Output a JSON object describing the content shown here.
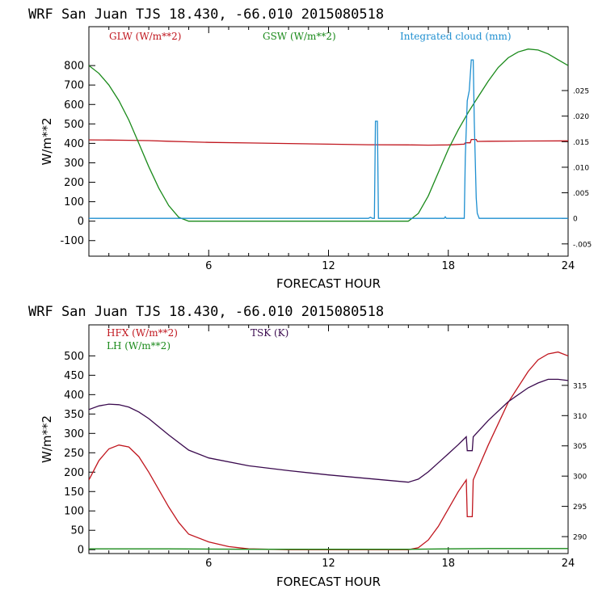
{
  "chart_data": [
    {
      "type": "line",
      "title": "WRF  San Juan TJS  18.430, -66.010  2015080518",
      "xlabel": "FORECAST HOUR",
      "ylabel": "W/m**2",
      "xlim": [
        0,
        24
      ],
      "ylim": [
        -180,
        1000
      ],
      "xticks": [
        "6",
        "12",
        "18",
        "24"
      ],
      "yticks": [
        "-100",
        "0",
        "100",
        "200",
        "300",
        "400",
        "500",
        "600",
        "700",
        "800"
      ],
      "y2lim": [
        -0.0074,
        0.0375
      ],
      "y2ticks": [
        "-.005",
        "0",
        ".005",
        ".010",
        ".015",
        ".020",
        ".025"
      ],
      "legend_placement": "top",
      "grid": false,
      "colors": {
        "GLW": "#c0161e",
        "GSW": "#1a8a1a",
        "CLOUD": "#1e8fd0"
      },
      "series": [
        {
          "name": "GLW (W/m**2)",
          "axis": "left",
          "color": "#c0161e",
          "x": [
            0,
            1,
            2,
            3,
            4,
            5,
            6,
            8,
            10,
            12,
            14,
            16,
            17,
            18,
            18.8,
            18.85,
            19.1,
            19.15,
            19.4,
            19.45,
            20,
            22,
            24
          ],
          "y": [
            418,
            417,
            416,
            414,
            411,
            408,
            405,
            402,
            399,
            396,
            393,
            392,
            391,
            392,
            396,
            403,
            403,
            420,
            420,
            410,
            411,
            412,
            413
          ]
        },
        {
          "name": "GSW (W/m**2)",
          "axis": "left",
          "color": "#1a8a1a",
          "x": [
            0,
            0.5,
            1,
            1.5,
            2,
            2.5,
            3,
            3.5,
            4,
            4.5,
            5,
            6,
            8,
            10,
            12,
            14,
            16,
            16.5,
            17,
            17.5,
            18,
            18.5,
            19,
            19.5,
            20,
            20.5,
            21,
            21.5,
            22,
            22.5,
            23,
            23.5,
            24
          ],
          "y": [
            800,
            760,
            700,
            620,
            520,
            400,
            280,
            170,
            80,
            20,
            0,
            0,
            0,
            0,
            0,
            0,
            0,
            40,
            130,
            250,
            370,
            470,
            560,
            640,
            720,
            790,
            840,
            870,
            885,
            880,
            860,
            830,
            800
          ]
        },
        {
          "name": "Integrated cloud (mm)",
          "axis": "right",
          "color": "#1e8fd0",
          "x": [
            0,
            14,
            14.1,
            14.2,
            14.3,
            14.35,
            14.45,
            14.5,
            14.6,
            15,
            17.8,
            17.85,
            17.9,
            18,
            18.8,
            18.85,
            18.95,
            19.05,
            19.15,
            19.25,
            19.3,
            19.4,
            19.45,
            19.55,
            20,
            24
          ],
          "y": [
            0,
            0,
            0.0002,
            0,
            0,
            0.019,
            0.019,
            0,
            0,
            0,
            0,
            0.0003,
            0,
            0,
            0,
            0.012,
            0.023,
            0.025,
            0.031,
            0.031,
            0.019,
            0.004,
            0.001,
            0,
            0,
            0
          ]
        }
      ]
    },
    {
      "type": "line",
      "title": "WRF  San Juan TJS  18.430, -66.010  2015080518",
      "xlabel": "FORECAST HOUR",
      "ylabel": "W/m**2",
      "xlim": [
        0,
        24
      ],
      "ylim": [
        -10,
        580
      ],
      "xticks": [
        "6",
        "12",
        "18",
        "24"
      ],
      "yticks": [
        "0",
        "50",
        "100",
        "150",
        "200",
        "250",
        "300",
        "350",
        "400",
        "450",
        "500"
      ],
      "y2lim": [
        287.2,
        325
      ],
      "y2ticks": [
        "290",
        "295",
        "300",
        "305",
        "310",
        "315"
      ],
      "legend_placement": "top-left",
      "grid": false,
      "colors": {
        "HFX": "#c0161e",
        "LH": "#1a8a1a",
        "TSK": "#3a0a4e"
      },
      "series": [
        {
          "name": "HFX (W/m**2)",
          "axis": "left",
          "color": "#c0161e",
          "x": [
            0,
            0.5,
            1,
            1.5,
            2,
            2.5,
            3,
            4,
            4.5,
            5,
            6,
            7,
            8,
            10,
            12,
            14,
            16,
            16.5,
            17,
            17.5,
            18,
            18.5,
            18.9,
            18.95,
            19.2,
            19.25,
            20,
            21,
            22,
            22.5,
            23,
            23.5,
            24
          ],
          "y": [
            180,
            230,
            260,
            270,
            265,
            240,
            200,
            110,
            70,
            40,
            20,
            8,
            2,
            0,
            0,
            0,
            0,
            5,
            25,
            60,
            105,
            150,
            180,
            85,
            85,
            180,
            270,
            380,
            460,
            490,
            505,
            510,
            500
          ]
        },
        {
          "name": "LH  (W/m**2)",
          "axis": "left",
          "color": "#1a8a1a",
          "x": [
            0,
            4,
            8,
            12,
            16,
            18,
            20,
            24
          ],
          "y": [
            2,
            2,
            1,
            1,
            1,
            2,
            3,
            3
          ]
        },
        {
          "name": "TSK (K)",
          "axis": "right",
          "color": "#3a0a4e",
          "x": [
            0,
            0.5,
            1,
            1.5,
            2,
            2.5,
            3,
            4,
            5,
            6,
            8,
            10,
            12,
            14,
            16,
            16.5,
            17,
            17.5,
            18,
            18.5,
            18.9,
            18.95,
            19.2,
            19.25,
            20,
            21,
            22,
            22.5,
            23,
            23.5,
            24
          ],
          "y": [
            311,
            311.6,
            311.9,
            311.8,
            311.4,
            310.6,
            309.5,
            306.8,
            304.3,
            303.0,
            301.7,
            300.9,
            300.2,
            299.6,
            299.0,
            299.5,
            300.7,
            302.2,
            303.7,
            305.2,
            306.5,
            304.2,
            304.2,
            306.5,
            309.2,
            312.3,
            314.6,
            315.4,
            316.0,
            316.0,
            315.8
          ]
        }
      ]
    }
  ]
}
